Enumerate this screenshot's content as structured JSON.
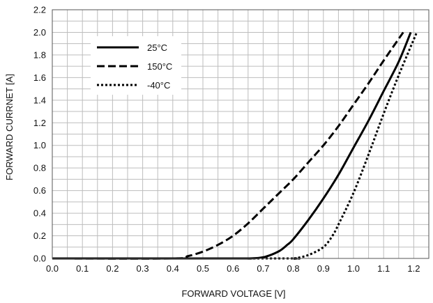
{
  "chart_data": {
    "type": "line",
    "title": "",
    "xlabel": "FORWARD VOLTAGE [V]",
    "ylabel": "FORWARD CURRNET [A]",
    "xlim": [
      0.0,
      1.25
    ],
    "ylim": [
      0.0,
      2.2
    ],
    "x_ticks": [
      "0.0",
      "0.1",
      "0.2",
      "0.3",
      "0.4",
      "0.5",
      "0.6",
      "0.7",
      "0.8",
      "0.9",
      "1.0",
      "1.1",
      "1.2"
    ],
    "y_ticks": [
      "0.0",
      "0.2",
      "0.4",
      "0.6",
      "0.8",
      "1.0",
      "1.2",
      "1.4",
      "1.6",
      "1.8",
      "2.0",
      "2.2"
    ],
    "x_minor_step": 0.05,
    "y_minor_step": 0.1,
    "grid": true,
    "legend_position": "top-left",
    "series": [
      {
        "name": "25°C",
        "style": "solid",
        "color": "#000000",
        "x": [
          0.0,
          0.6,
          0.65,
          0.7,
          0.75,
          0.78,
          0.8,
          0.85,
          0.9,
          0.95,
          1.0,
          1.05,
          1.1,
          1.15,
          1.19
        ],
        "y": [
          0.0,
          0.0,
          0.0,
          0.01,
          0.06,
          0.12,
          0.17,
          0.34,
          0.53,
          0.74,
          0.98,
          1.22,
          1.48,
          1.74,
          2.0
        ]
      },
      {
        "name": "150°C",
        "style": "dashed",
        "color": "#000000",
        "x": [
          0.0,
          0.4,
          0.45,
          0.5,
          0.55,
          0.6,
          0.65,
          0.7,
          0.75,
          0.8,
          0.85,
          0.9,
          0.95,
          1.0,
          1.05,
          1.1,
          1.165
        ],
        "y": [
          0.0,
          0.0,
          0.02,
          0.06,
          0.12,
          0.2,
          0.31,
          0.44,
          0.57,
          0.7,
          0.85,
          1.0,
          1.17,
          1.36,
          1.55,
          1.75,
          2.0
        ]
      },
      {
        "name": "-40°C",
        "style": "dotted",
        "color": "#000000",
        "x": [
          0.0,
          0.75,
          0.8,
          0.85,
          0.9,
          0.93,
          0.95,
          1.0,
          1.05,
          1.1,
          1.15,
          1.21
        ],
        "y": [
          0.0,
          0.0,
          0.0,
          0.03,
          0.1,
          0.2,
          0.3,
          0.58,
          0.92,
          1.28,
          1.62,
          2.0
        ]
      }
    ]
  }
}
